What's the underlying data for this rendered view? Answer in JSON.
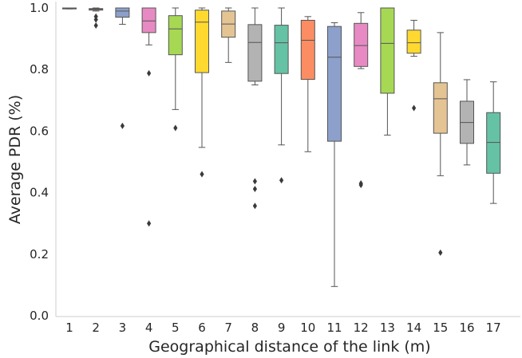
{
  "chart_data": {
    "type": "box",
    "title": "",
    "xlabel": "Geographical distance of the link (m)",
    "ylabel": "Average PDR (%)",
    "ylim": [
      0.0,
      1.0
    ],
    "yticks": [
      "0.0",
      "0.2",
      "0.4",
      "0.6",
      "0.8",
      "1.0"
    ],
    "categories": [
      "1",
      "2",
      "3",
      "4",
      "5",
      "6",
      "7",
      "8",
      "9",
      "10",
      "11",
      "12",
      "13",
      "14",
      "15",
      "16",
      "17"
    ],
    "grid": false,
    "legend": "none",
    "boxes": [
      {
        "category": "1",
        "q1": 0.997,
        "median": 0.999,
        "q3": 1.0,
        "whislo": 0.997,
        "whishi": 1.0,
        "fliers": [],
        "color": "#66c2a5"
      },
      {
        "category": "2",
        "q1": 0.993,
        "median": 0.996,
        "q3": 0.998,
        "whislo": 0.99,
        "whishi": 1.0,
        "fliers": [
          0.972,
          0.962,
          0.943
        ],
        "color": "#fc8d62"
      },
      {
        "category": "3",
        "q1": 0.97,
        "median": 0.99,
        "q3": 1.0,
        "whislo": 0.947,
        "whishi": 1.0,
        "fliers": [
          0.617
        ],
        "color": "#8da0cb"
      },
      {
        "category": "4",
        "q1": 0.92,
        "median": 0.958,
        "q3": 1.0,
        "whislo": 0.88,
        "whishi": 1.0,
        "fliers": [
          0.788,
          0.3
        ],
        "color": "#e78ac3"
      },
      {
        "category": "5",
        "q1": 0.848,
        "median": 0.932,
        "q3": 0.975,
        "whislo": 0.67,
        "whishi": 1.0,
        "fliers": [
          0.61
        ],
        "color": "#a6d854"
      },
      {
        "category": "6",
        "q1": 0.79,
        "median": 0.954,
        "q3": 0.993,
        "whislo": 0.547,
        "whishi": 1.0,
        "fliers": [
          0.46
        ],
        "color": "#ffd92f"
      },
      {
        "category": "7",
        "q1": 0.905,
        "median": 0.948,
        "q3": 0.99,
        "whislo": 0.823,
        "whishi": 1.0,
        "fliers": [],
        "color": "#e5c494"
      },
      {
        "category": "8",
        "q1": 0.762,
        "median": 0.888,
        "q3": 0.946,
        "whislo": 0.75,
        "whishi": 1.0,
        "fliers": [
          0.437,
          0.412,
          0.357
        ],
        "color": "#b3b3b3"
      },
      {
        "category": "9",
        "q1": 0.787,
        "median": 0.887,
        "q3": 0.944,
        "whislo": 0.555,
        "whishi": 1.0,
        "fliers": [
          0.44
        ],
        "color": "#66c2a5"
      },
      {
        "category": "10",
        "q1": 0.768,
        "median": 0.895,
        "q3": 0.96,
        "whislo": 0.533,
        "whishi": 0.972,
        "fliers": [],
        "color": "#fc8d62"
      },
      {
        "category": "11",
        "q1": 0.567,
        "median": 0.84,
        "q3": 0.94,
        "whislo": 0.095,
        "whishi": 0.952,
        "fliers": [],
        "color": "#8da0cb"
      },
      {
        "category": "12",
        "q1": 0.81,
        "median": 0.878,
        "q3": 0.95,
        "whislo": 0.803,
        "whishi": 0.985,
        "fliers": [
          0.43,
          0.425
        ],
        "color": "#e78ac3"
      },
      {
        "category": "13",
        "q1": 0.723,
        "median": 0.885,
        "q3": 1.0,
        "whislo": 0.587,
        "whishi": 1.0,
        "fliers": [],
        "color": "#a6d854"
      },
      {
        "category": "14",
        "q1": 0.853,
        "median": 0.887,
        "q3": 0.928,
        "whislo": 0.843,
        "whishi": 0.96,
        "fliers": [
          0.675
        ],
        "color": "#ffd92f"
      },
      {
        "category": "15",
        "q1": 0.593,
        "median": 0.705,
        "q3": 0.757,
        "whislo": 0.455,
        "whishi": 0.92,
        "fliers": [
          0.205
        ],
        "color": "#e5c494"
      },
      {
        "category": "16",
        "q1": 0.56,
        "median": 0.628,
        "q3": 0.697,
        "whislo": 0.49,
        "whishi": 0.767,
        "fliers": [],
        "color": "#b3b3b3"
      },
      {
        "category": "17",
        "q1": 0.463,
        "median": 0.563,
        "q3": 0.66,
        "whislo": 0.365,
        "whishi": 0.76,
        "fliers": [],
        "color": "#66c2a5"
      }
    ]
  }
}
